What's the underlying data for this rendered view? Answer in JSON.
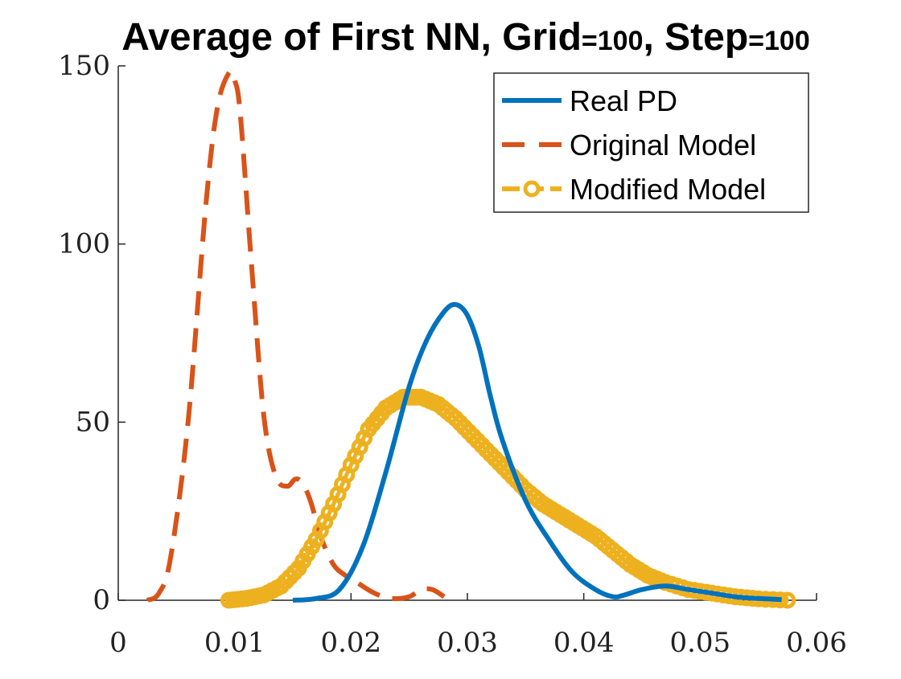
{
  "chart_data": {
    "type": "line",
    "title_main_a": "Average of First NN, Grid",
    "title_small_a": "=100",
    "title_main_b": ", Step",
    "title_small_b": "=100",
    "xlim": [
      0,
      0.06
    ],
    "ylim": [
      0,
      150
    ],
    "x_ticks": [
      0,
      0.01,
      0.02,
      0.03,
      0.04,
      0.05,
      0.06
    ],
    "x_tick_labels": [
      "0",
      "0.01",
      "0.02",
      "0.03",
      "0.04",
      "0.05",
      "0.06"
    ],
    "y_ticks": [
      0,
      50,
      100,
      150
    ],
    "y_tick_labels": [
      "0",
      "50",
      "100",
      "150"
    ],
    "grid": false,
    "legend_position": "top-right",
    "series": [
      {
        "name": "Real PD",
        "style": "solid",
        "color": "#0072BD",
        "x": [
          0.015,
          0.017,
          0.019,
          0.021,
          0.023,
          0.025,
          0.0265,
          0.028,
          0.029,
          0.03,
          0.031,
          0.032,
          0.033,
          0.035,
          0.037,
          0.039,
          0.041,
          0.0425,
          0.0435,
          0.045,
          0.047,
          0.049,
          0.051,
          0.053,
          0.055,
          0.057
        ],
        "y": [
          0,
          0.5,
          3,
          15,
          36,
          60,
          73,
          81,
          83,
          80,
          71,
          57,
          45,
          28,
          17,
          8,
          3,
          1,
          1.5,
          3,
          4,
          3,
          2,
          1,
          0.5,
          0.2
        ]
      },
      {
        "name": "Original Model",
        "style": "dashed",
        "color": "#D95319",
        "x": [
          0.0025,
          0.0035,
          0.0045,
          0.006,
          0.0075,
          0.0085,
          0.0095,
          0.01,
          0.0105,
          0.0115,
          0.0125,
          0.0135,
          0.0145,
          0.0152,
          0.0158,
          0.0165,
          0.0175,
          0.0185,
          0.0195,
          0.0205,
          0.022,
          0.0235,
          0.025,
          0.026,
          0.027,
          0.028
        ],
        "y": [
          0,
          2,
          12,
          50,
          110,
          138,
          148,
          146,
          136,
          92,
          52,
          35,
          32,
          34,
          33,
          28,
          17,
          10,
          7,
          5,
          2,
          0.5,
          1,
          3,
          3,
          1
        ]
      },
      {
        "name": "Modified Model",
        "style": "dashed-markers",
        "color": "#EDB120",
        "x": [
          0.0095,
          0.011,
          0.0125,
          0.014,
          0.0155,
          0.017,
          0.0185,
          0.02,
          0.0215,
          0.023,
          0.0245,
          0.026,
          0.0275,
          0.029,
          0.0305,
          0.032,
          0.0335,
          0.035,
          0.0365,
          0.038,
          0.0395,
          0.041,
          0.0425,
          0.044,
          0.0455,
          0.047,
          0.049,
          0.051,
          0.053,
          0.055,
          0.0575
        ],
        "y": [
          0,
          0.5,
          1.5,
          4,
          9,
          17,
          27,
          38,
          48,
          54,
          57,
          57,
          55,
          51,
          46,
          41,
          36,
          31,
          27,
          24,
          21,
          18,
          14,
          10,
          7,
          5,
          3,
          2,
          1,
          0.4,
          0
        ]
      }
    ]
  }
}
